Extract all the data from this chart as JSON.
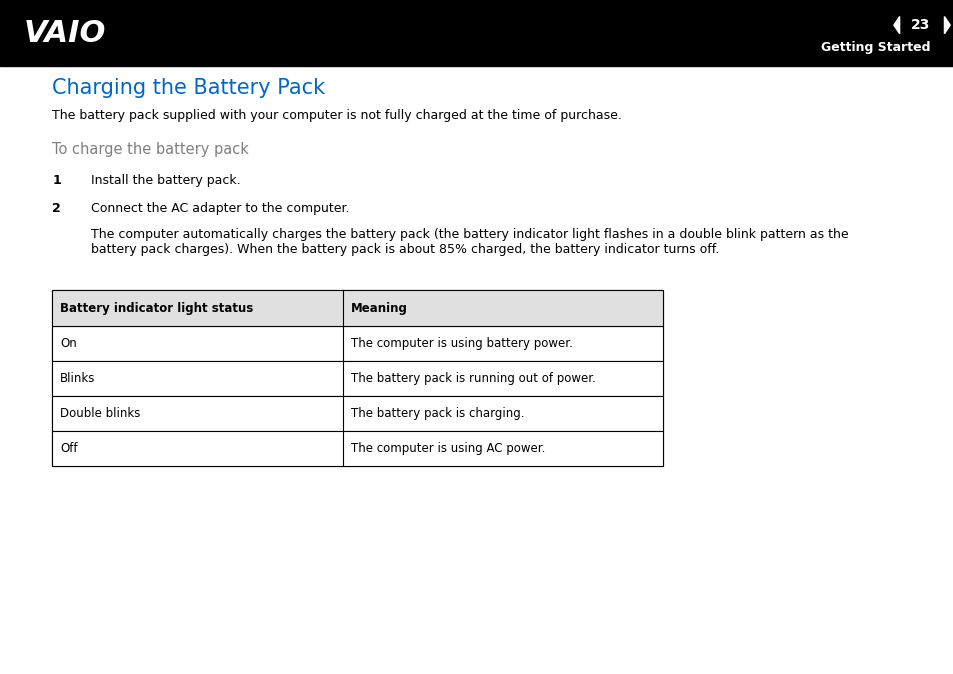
{
  "header_bg": "#000000",
  "header_text_color": "#ffffff",
  "page_bg": "#ffffff",
  "logo_text": "VAIO",
  "page_number": "23",
  "section_label": "Getting Started",
  "title": "Charging the Battery Pack",
  "title_color": "#0066cc",
  "subtitle": "To charge the battery pack",
  "subtitle_color": "#808080",
  "body_text_color": "#000000",
  "intro_text": "The battery pack supplied with your computer is not fully charged at the time of purchase.",
  "step1_num": "1",
  "step1_text": "Install the battery pack.",
  "step2_num": "2",
  "step2_line1": "Connect the AC adapter to the computer.",
  "step2_line2": "The computer automatically charges the battery pack (the battery indicator light flashes in a double blink pattern as the\nbattery pack charges). When the battery pack is about 85% charged, the battery indicator turns off.",
  "table_header_col1": "Battery indicator light status",
  "table_header_col2": "Meaning",
  "table_rows": [
    [
      "On",
      "The computer is using battery power."
    ],
    [
      "Blinks",
      "The battery pack is running out of power."
    ],
    [
      "Double blinks",
      "The battery pack is charging."
    ],
    [
      "Off",
      "The computer is using AC power."
    ]
  ],
  "font_size_body": 9,
  "font_size_title": 15,
  "font_size_subtitle": 10.5,
  "font_size_table": 8.5
}
